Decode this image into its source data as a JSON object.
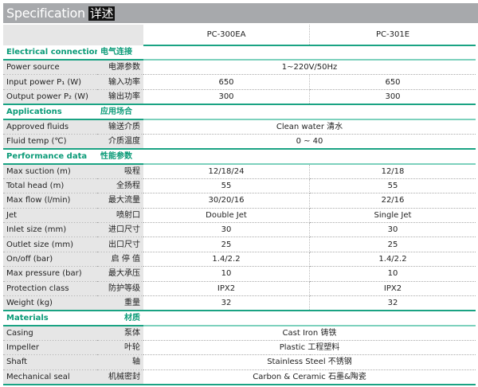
{
  "title": {
    "en": "Specification",
    "cn": "详述"
  },
  "models": [
    "PC-300EA",
    "PC-301E"
  ],
  "sections": [
    {
      "en": "Electrical connection",
      "cn": "电气连接",
      "rows": [
        {
          "en": "Power source",
          "cn": "电源参数",
          "span": "1~220V/50Hz"
        },
        {
          "en": "Input power P₁ (W)",
          "cn": "输入功率",
          "a": "650",
          "b": "650"
        },
        {
          "en": "Output power P₂ (W)",
          "cn": "输出功率",
          "a": "300",
          "b": "300"
        }
      ]
    },
    {
      "en": "Applications",
      "cn": "应用场合",
      "rows": [
        {
          "en": "Approved fluids",
          "cn": "输送介质",
          "span": "Clean water 清水"
        },
        {
          "en": "Fluid temp (℃)",
          "cn": "介质温度",
          "span": "0 ~ 40"
        }
      ]
    },
    {
      "en": "Performance data",
      "cn": "性能参数",
      "rows": [
        {
          "en": "Max suction (m)",
          "cn": "吸程",
          "a": "12/18/24",
          "b": "12/18"
        },
        {
          "en": "Total head (m)",
          "cn": "全扬程",
          "a": "55",
          "b": "55"
        },
        {
          "en": "Max flow (l/min)",
          "cn": "最大流量",
          "a": "30/20/16",
          "b": "22/16"
        },
        {
          "en": "Jet",
          "cn": "喷射口",
          "a": "Double Jet",
          "b": "Single Jet"
        },
        {
          "en": "Inlet size (mm)",
          "cn": "进口尺寸",
          "a": "30",
          "b": "30"
        },
        {
          "en": "Outlet size (mm)",
          "cn": "出口尺寸",
          "a": "25",
          "b": "25"
        },
        {
          "en": "On/off (bar)",
          "cn": "启 停 值",
          "a": "1.4/2.2",
          "b": "1.4/2.2"
        },
        {
          "en": "Max pressure (bar)",
          "cn": "最大承压",
          "a": "10",
          "b": "10"
        },
        {
          "en": "Protection class",
          "cn": "防护等级",
          "a": "IPX2",
          "b": "IPX2"
        },
        {
          "en": "Weight (kg)",
          "cn": "重量",
          "a": "32",
          "b": "32"
        }
      ]
    },
    {
      "en": "Materials",
      "cn": "材质",
      "rows": [
        {
          "en": "Casing",
          "cn": "泵体",
          "span": "Cast Iron 铸铁"
        },
        {
          "en": "Impeller",
          "cn": "叶轮",
          "span": "Plastic 工程塑料"
        },
        {
          "en": "Shaft",
          "cn": "轴",
          "span": "Stainless Steel 不锈钢"
        },
        {
          "en": "Mechanical seal",
          "cn": "机械密封",
          "span": "Carbon & Ceramic 石墨&陶瓷"
        }
      ]
    }
  ],
  "colors": {
    "accent": "#0b9b78",
    "title_bar": "#a7a9ac",
    "label_bg": "#e6e6e6"
  }
}
